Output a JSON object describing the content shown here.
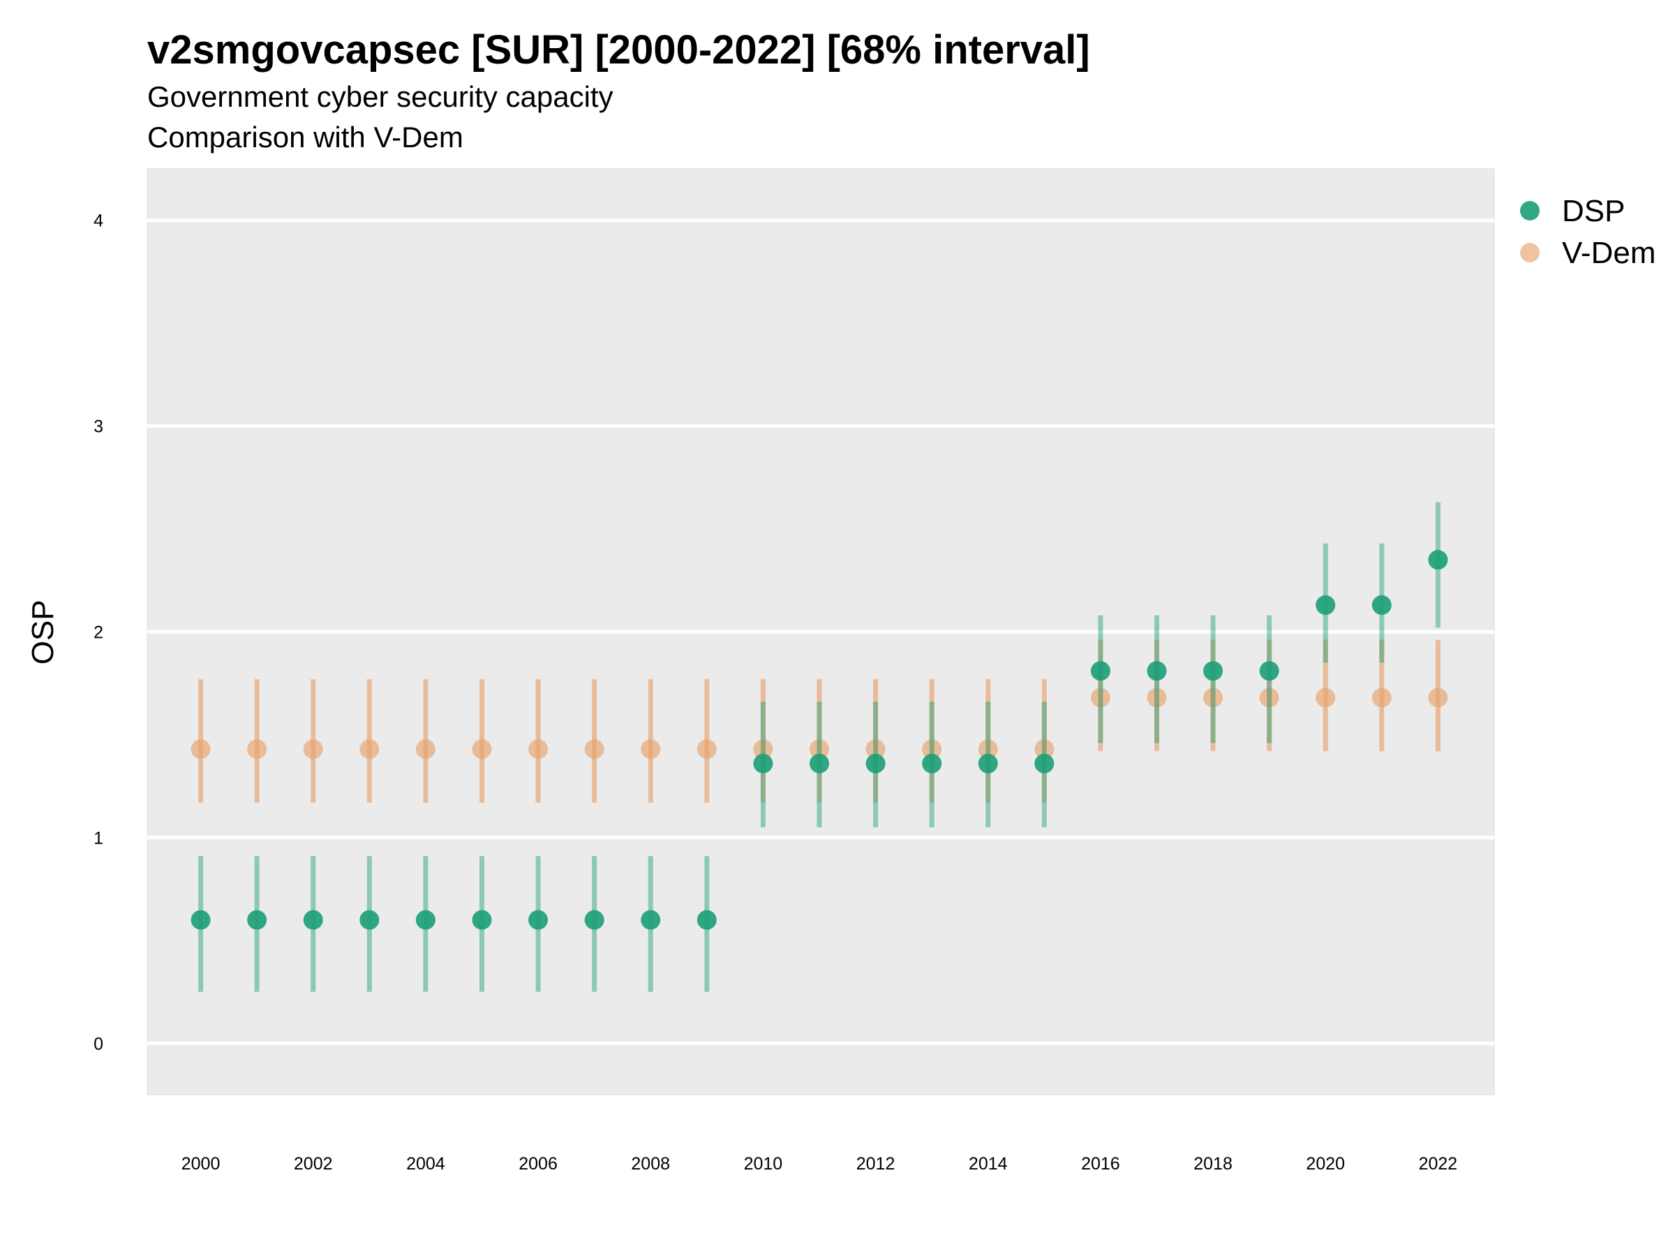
{
  "chart_data": {
    "type": "scatter",
    "title": "v2smgovcapsec [SUR] [2000-2022] [68% interval]",
    "subtitle_lines": [
      "Government cyber security capacity",
      "Comparison with V-Dem"
    ],
    "xlabel": "",
    "ylabel": "OSP",
    "ylim": [
      -0.25,
      4.25
    ],
    "xlim": [
      1999.05,
      2023.0
    ],
    "y_ticks": [
      0,
      1,
      2,
      3,
      4
    ],
    "x_ticks": [
      2000,
      2002,
      2004,
      2006,
      2008,
      2010,
      2012,
      2014,
      2016,
      2018,
      2020,
      2022
    ],
    "x": [
      2000,
      2001,
      2002,
      2003,
      2004,
      2005,
      2006,
      2007,
      2008,
      2009,
      2010,
      2011,
      2012,
      2013,
      2014,
      2015,
      2016,
      2017,
      2018,
      2019,
      2020,
      2021,
      2022
    ],
    "grid": true,
    "legend_position": "top-right",
    "series": [
      {
        "name": "DSP",
        "color": "#1b9e77",
        "values": [
          0.6,
          0.6,
          0.6,
          0.6,
          0.6,
          0.6,
          0.6,
          0.6,
          0.6,
          0.6,
          1.36,
          1.36,
          1.36,
          1.36,
          1.36,
          1.36,
          1.81,
          1.81,
          1.81,
          1.81,
          2.13,
          2.13,
          2.35
        ],
        "lower": [
          0.25,
          0.25,
          0.25,
          0.25,
          0.25,
          0.25,
          0.25,
          0.25,
          0.25,
          0.25,
          1.05,
          1.05,
          1.05,
          1.05,
          1.05,
          1.05,
          1.46,
          1.46,
          1.46,
          1.46,
          1.85,
          1.85,
          2.02
        ],
        "upper": [
          0.91,
          0.91,
          0.91,
          0.91,
          0.91,
          0.91,
          0.91,
          0.91,
          0.91,
          0.91,
          1.66,
          1.66,
          1.66,
          1.66,
          1.66,
          1.66,
          2.08,
          2.08,
          2.08,
          2.08,
          2.43,
          2.43,
          2.63
        ]
      },
      {
        "name": "V-Dem",
        "color": "#e8a36d",
        "values": [
          1.43,
          1.43,
          1.43,
          1.43,
          1.43,
          1.43,
          1.43,
          1.43,
          1.43,
          1.43,
          1.43,
          1.43,
          1.43,
          1.43,
          1.43,
          1.43,
          1.68,
          1.68,
          1.68,
          1.68,
          1.68,
          1.68,
          1.68
        ],
        "lower": [
          1.17,
          1.17,
          1.17,
          1.17,
          1.17,
          1.17,
          1.17,
          1.17,
          1.17,
          1.17,
          1.17,
          1.17,
          1.17,
          1.17,
          1.17,
          1.17,
          1.42,
          1.42,
          1.42,
          1.42,
          1.42,
          1.42,
          1.42
        ],
        "upper": [
          1.77,
          1.77,
          1.77,
          1.77,
          1.77,
          1.77,
          1.77,
          1.77,
          1.77,
          1.77,
          1.77,
          1.77,
          1.77,
          1.77,
          1.77,
          1.77,
          1.96,
          1.96,
          1.96,
          1.96,
          1.96,
          1.96,
          1.96
        ]
      }
    ]
  }
}
